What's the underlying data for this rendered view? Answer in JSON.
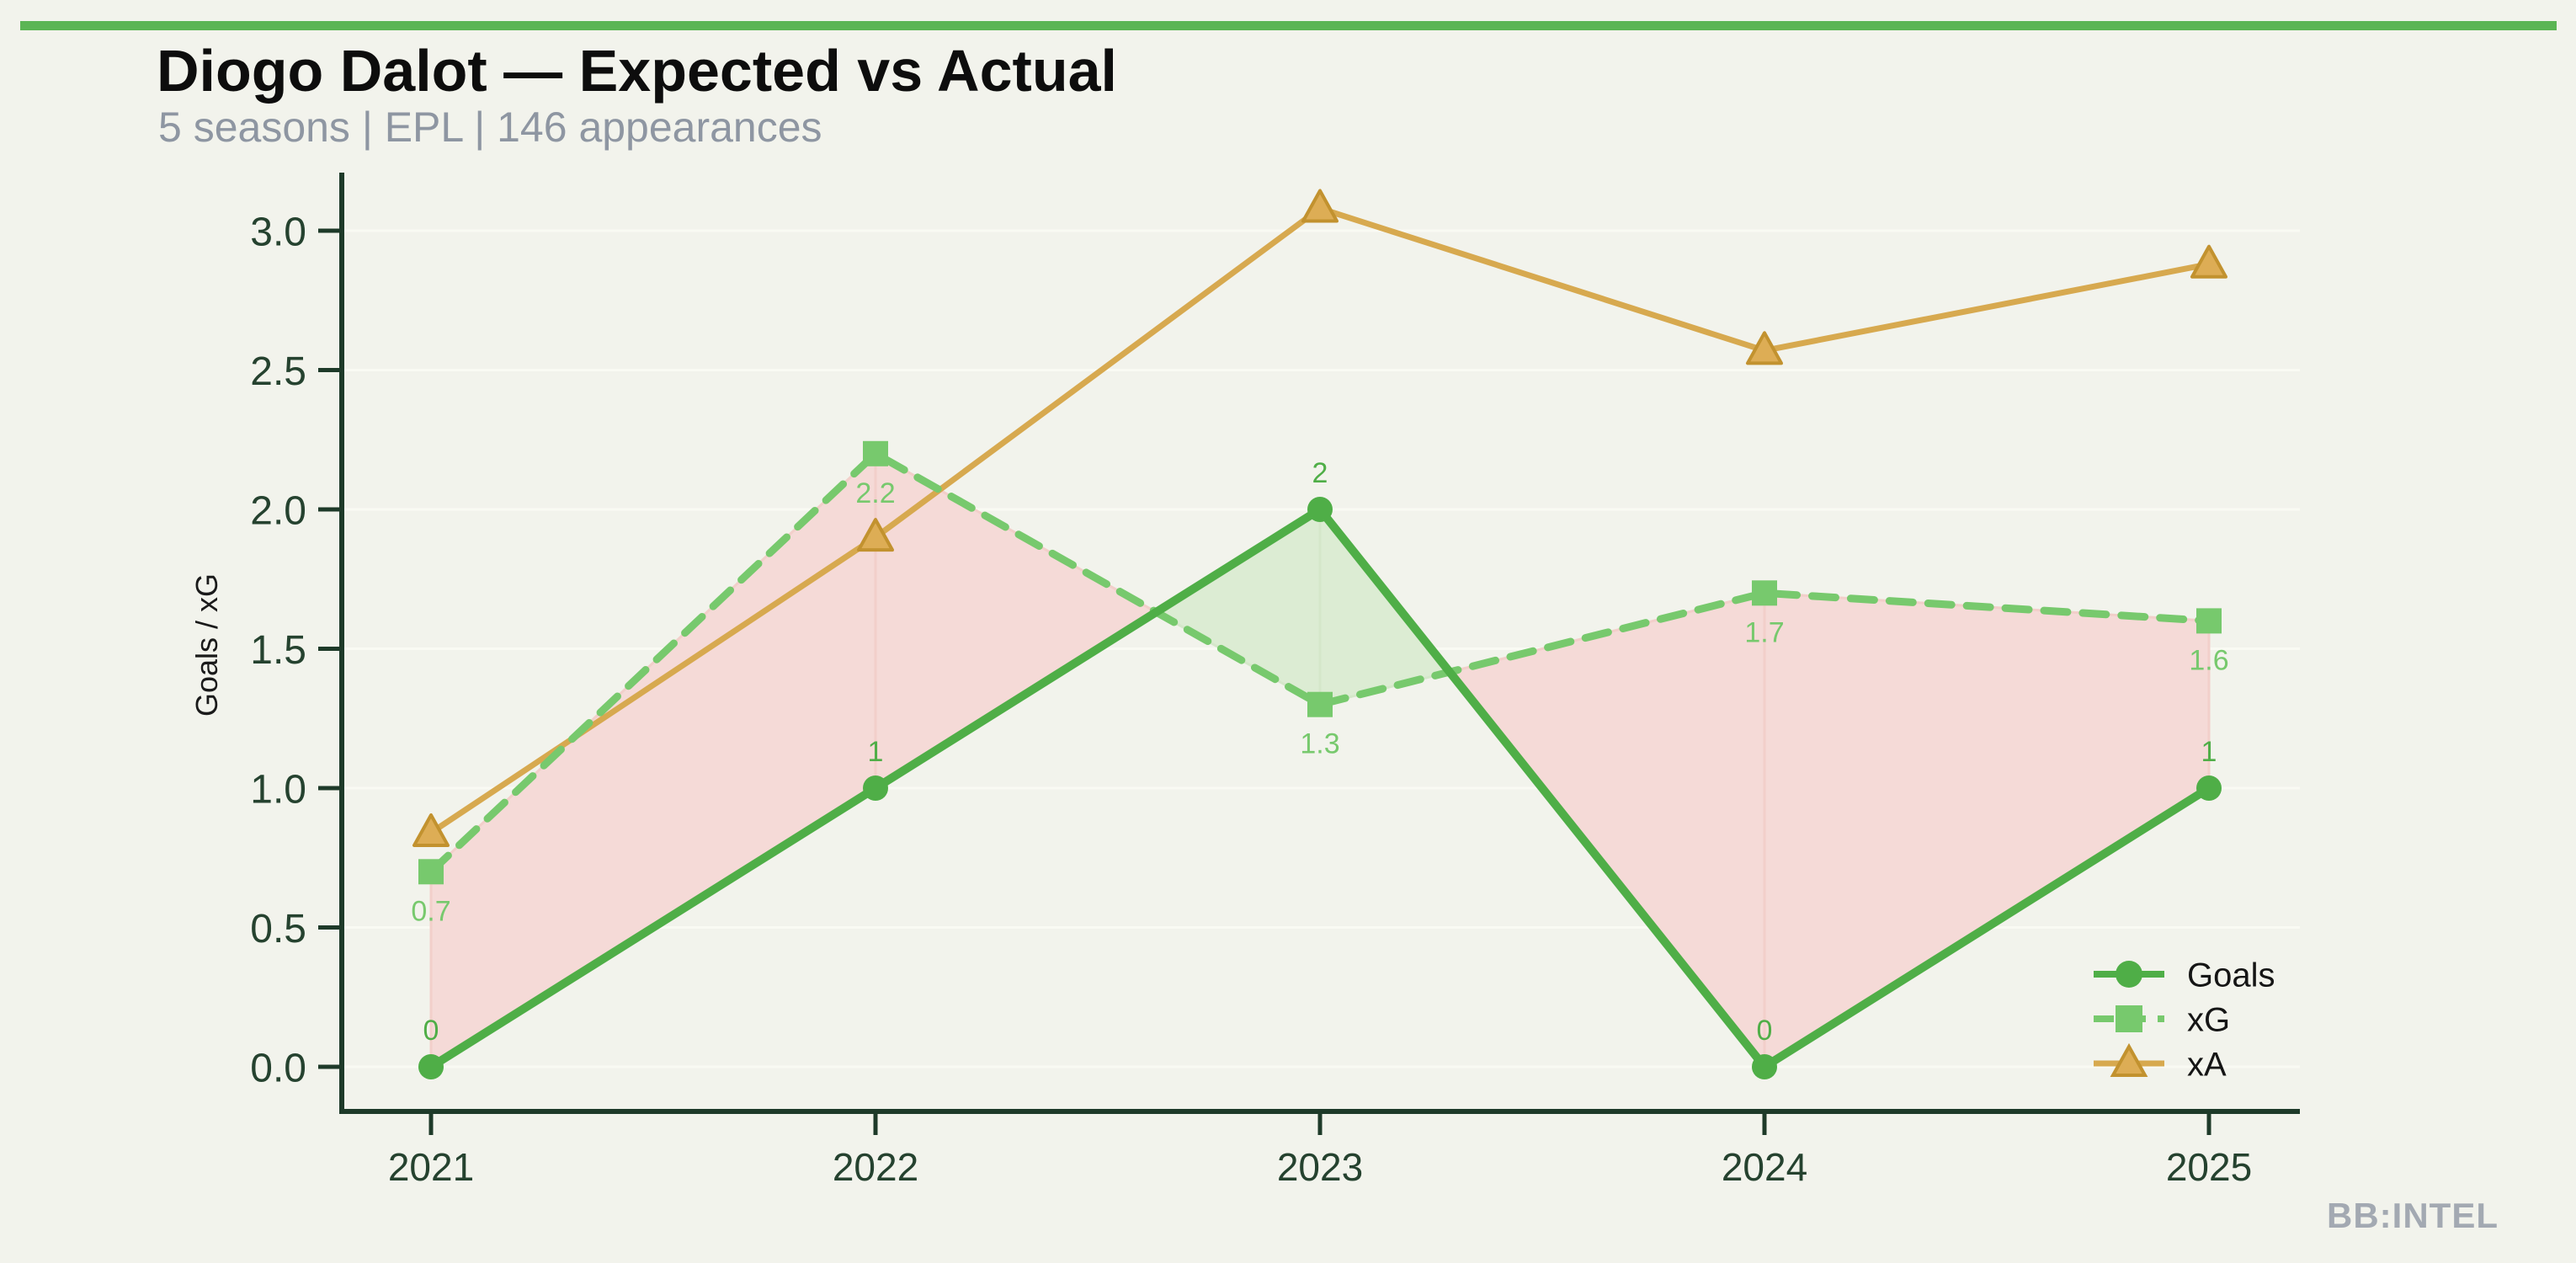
{
  "header": {
    "title": "Diogo Dalot — Expected vs Actual",
    "subtitle": "5 seasons | EPL | 146 appearances"
  },
  "watermark": "BB:INTEL",
  "palette": {
    "background": "#f2f3ec",
    "accent_bar_green": "#5bb554",
    "title_text": "#0d0d0d",
    "subtitle_text": "#8e96a2",
    "axis_dark_green": "#1e3a29",
    "tick_text_green": "#25422f",
    "gridline": "#f9faf3",
    "goals_green": "#4fae47",
    "xg_green": "#77c96d",
    "xa_tan": "#d7a94f",
    "xa_marker_fill": "#ddad55",
    "xa_marker_edge": "#c2922f",
    "fill_pink": "#f5dad7",
    "fill_pink_edge": "#f2cfca",
    "fill_green": "#dcecd3",
    "fill_green_edge": "#d5e7ca",
    "legend_text": "#151515",
    "ylabel_text": "#1a1a1a",
    "watermark_gray": "#a3a9b2"
  },
  "chart_data": {
    "type": "line",
    "title": "Diogo Dalot — Expected vs Actual",
    "categories": [
      "2021",
      "2022",
      "2023",
      "2024",
      "2025"
    ],
    "series": [
      {
        "name": "Goals",
        "marker": "circle",
        "line": "solid",
        "values": [
          0,
          1,
          2,
          0,
          1
        ],
        "labels": [
          "0",
          "1",
          "2",
          "0",
          "1"
        ],
        "color": "#4fae47"
      },
      {
        "name": "xG",
        "marker": "square",
        "line": "dashed",
        "values": [
          0.7,
          2.2,
          1.3,
          1.7,
          1.6
        ],
        "labels": [
          "0.7",
          "2.2",
          "1.3",
          "1.7",
          "1.6"
        ],
        "color": "#77c96d"
      },
      {
        "name": "xA",
        "marker": "triangle",
        "line": "solid",
        "values": [
          0.84,
          1.9,
          3.08,
          2.57,
          2.88
        ],
        "labels": [
          "",
          "",
          "",
          "",
          ""
        ],
        "color": "#d7a94f"
      }
    ],
    "xlabel": "",
    "ylabel": "Goals / xG",
    "yticks": [
      "0.0",
      "0.5",
      "1.0",
      "1.5",
      "2.0",
      "2.5",
      "3.0"
    ],
    "ytick_step": 0.5,
    "ylim": [
      0,
      3.2
    ],
    "grid": true,
    "legend_position": "bottom-right",
    "fill_between": {
      "upper": "xG",
      "lower": "Goals",
      "xg_above_goals_color": "#f5dad7",
      "goals_above_xg_color": "#dcecd3"
    }
  }
}
